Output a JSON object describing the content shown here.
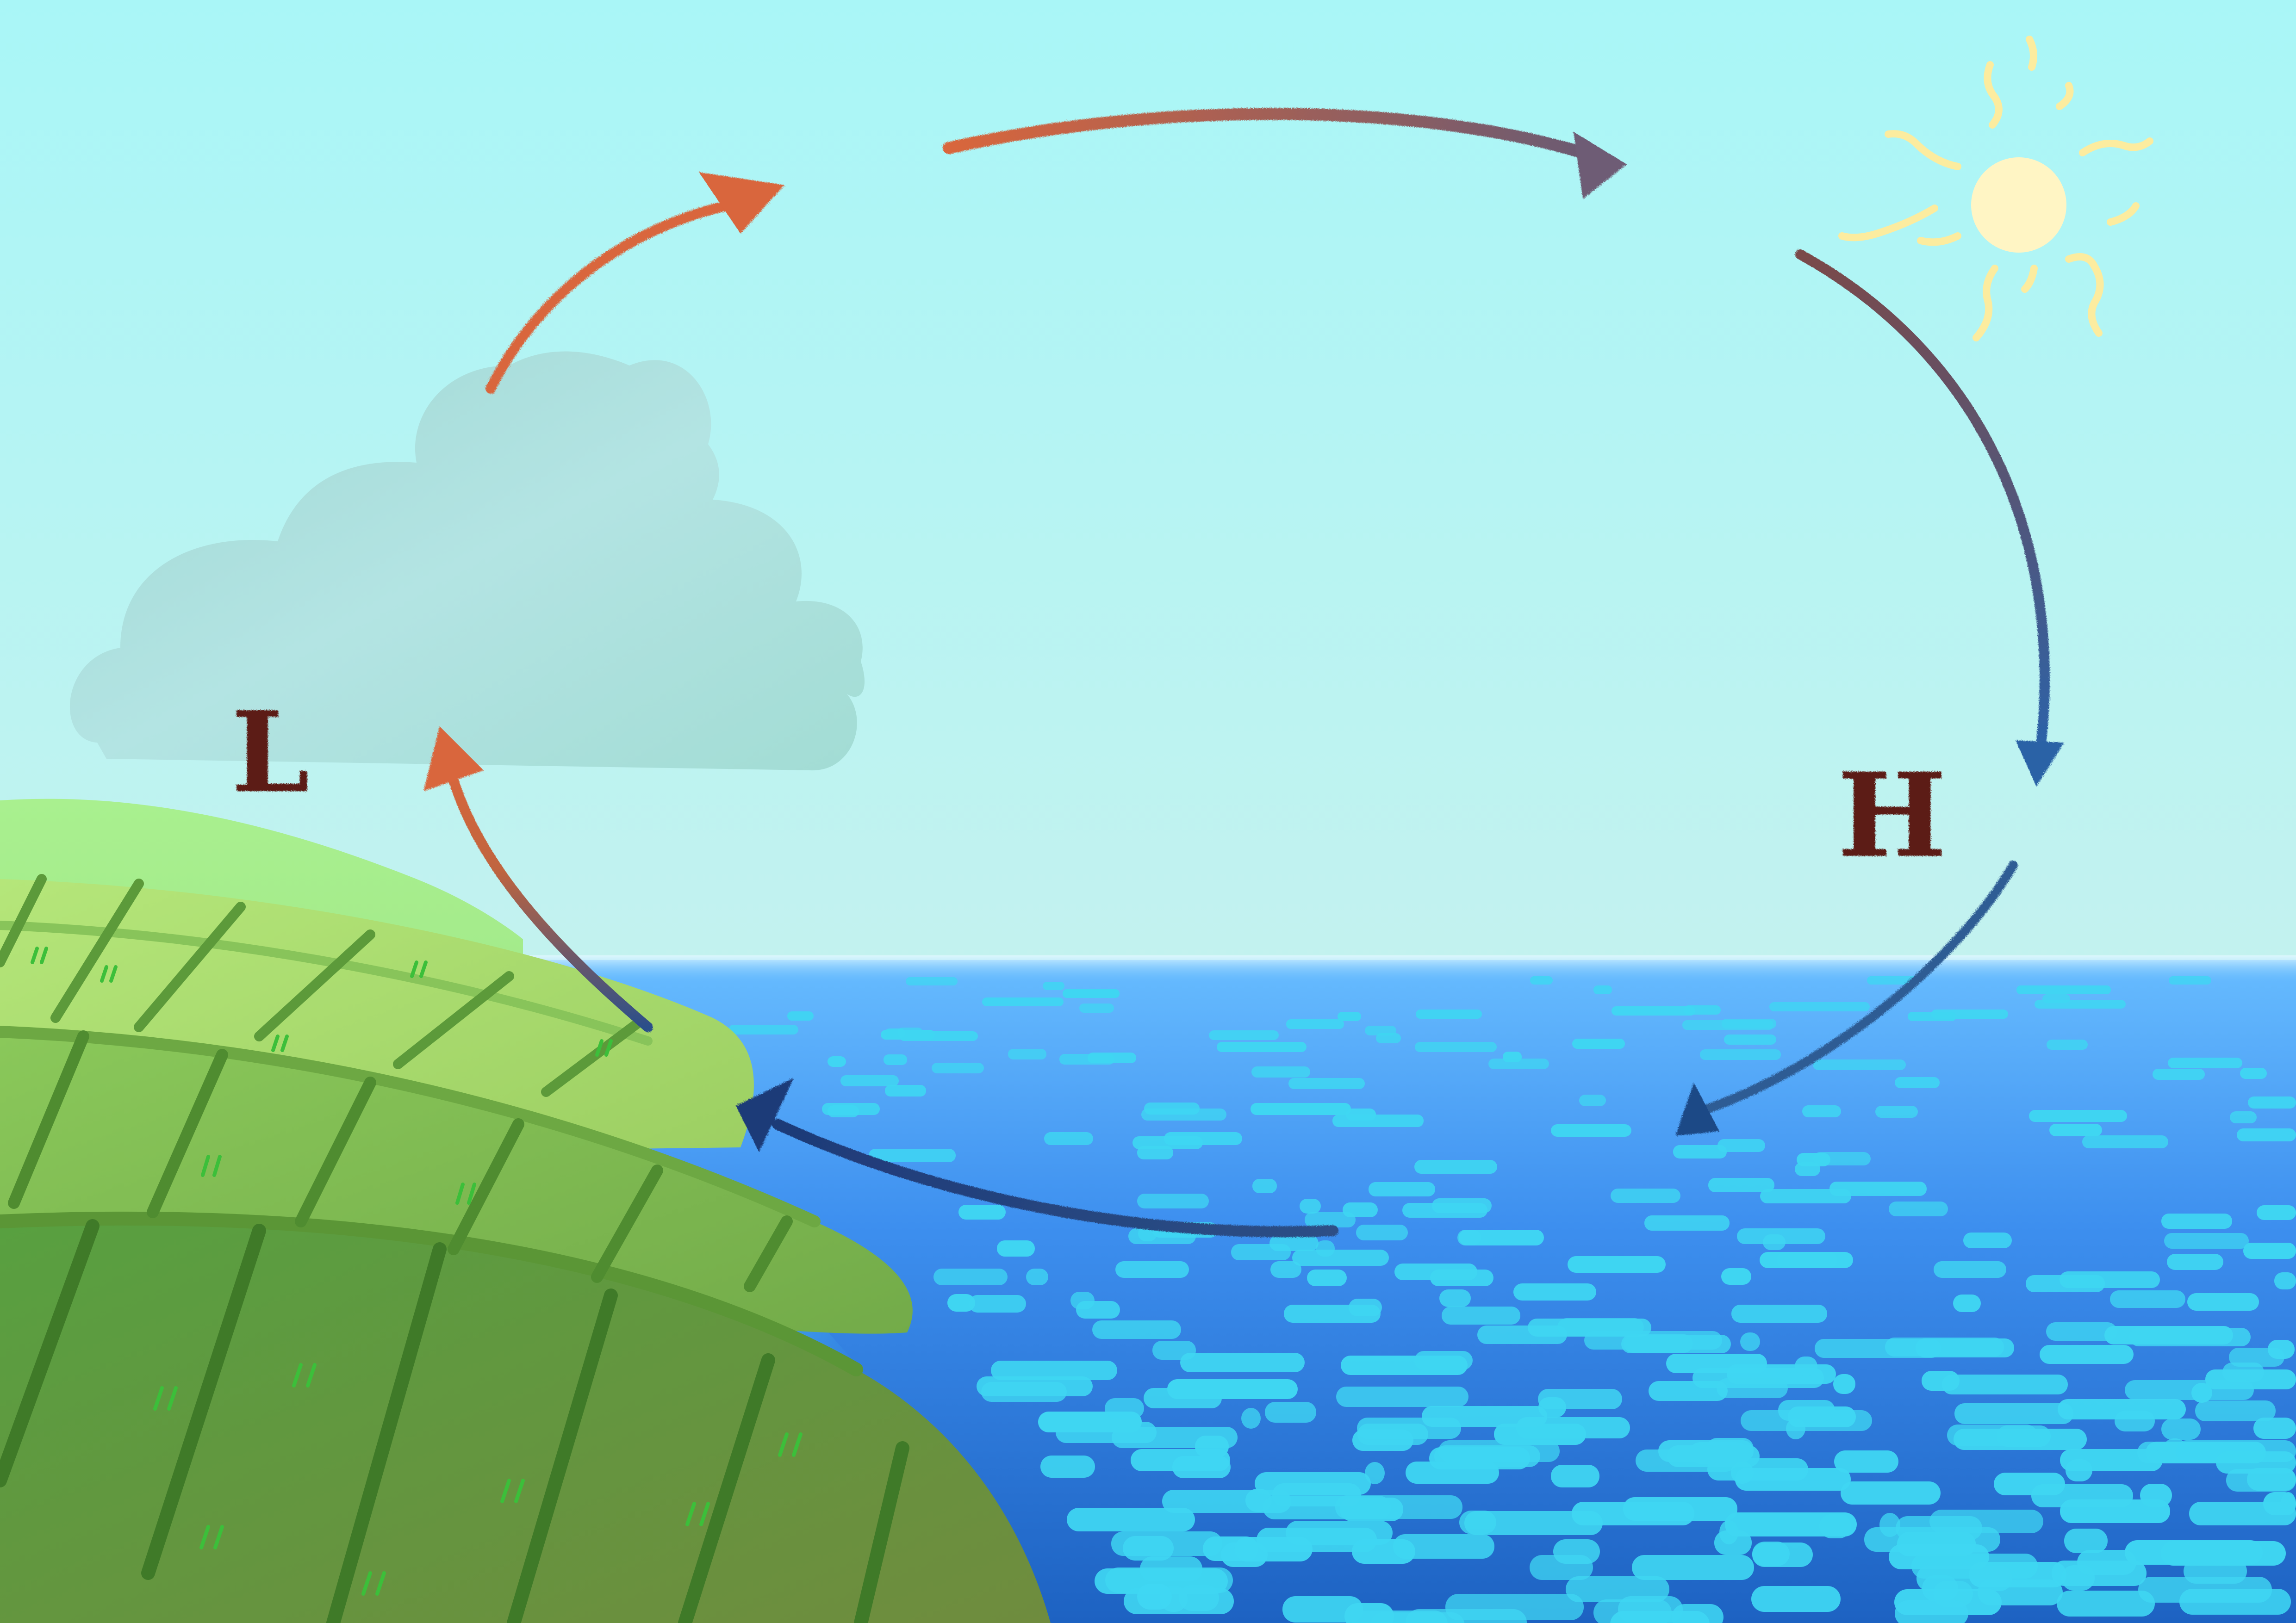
{
  "diagram": {
    "type": "sea-breeze-circulation",
    "labels": {
      "low_pressure": "L",
      "high_pressure": "H"
    },
    "elements": {
      "sun": "sun-icon",
      "cloud": "cloud-icon",
      "land": "hill",
      "sea": "ocean"
    },
    "flow_sequence": [
      "sea-to-land-surface",
      "rising-over-land",
      "aloft-toward-sea",
      "sinking-over-sea"
    ],
    "colors": {
      "sky_top": "#aaf6f6",
      "sky_bottom": "#c2f4f2",
      "sea_top": "#5bb0ff",
      "sea_bottom": "#1f67c7",
      "ripple": "#3fd6f2",
      "cloud": "#a6e0de",
      "sun": "#fff5c4",
      "warm_arrow": "#d9663c",
      "cool_arrow": "#2a5f9e",
      "hill_light": "#b0e07a",
      "hill_dark": "#5a8a36",
      "label": "#5c1b14"
    }
  }
}
